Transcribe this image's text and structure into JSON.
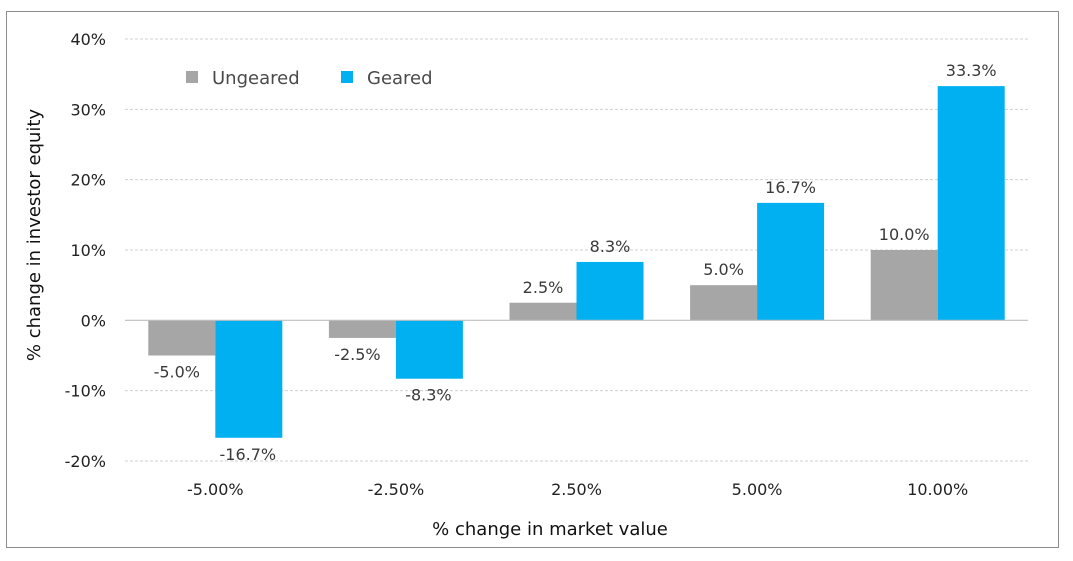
{
  "chart_data": {
    "type": "bar",
    "categories": [
      "-5.00%",
      "-2.50%",
      "2.50%",
      "5.00%",
      "10.00%"
    ],
    "series": [
      {
        "name": "Ungeared",
        "values": [
          -5.0,
          -2.5,
          2.5,
          5.0,
          10.0
        ],
        "labels": [
          "-5.0%",
          "-2.5%",
          "2.5%",
          "5.0%",
          "10.0%"
        ],
        "color": "#a6a6a6"
      },
      {
        "name": "Geared",
        "values": [
          -16.7,
          -8.3,
          8.3,
          16.7,
          33.3
        ],
        "labels": [
          "-16.7%",
          "-8.3%",
          "8.3%",
          "16.7%",
          "33.3%"
        ],
        "color": "#00b0f0"
      }
    ],
    "xlabel": "% change in market value",
    "ylabel": "% change in investor equity",
    "ylim": [
      -20,
      40
    ],
    "yticks": [
      40,
      30,
      20,
      10,
      0,
      -10,
      -20
    ],
    "ytick_labels": [
      "40%",
      "30%",
      "20%",
      "10%",
      "0%",
      "-10%",
      "-20%"
    ],
    "grid": true,
    "legend_position": "top-left"
  }
}
